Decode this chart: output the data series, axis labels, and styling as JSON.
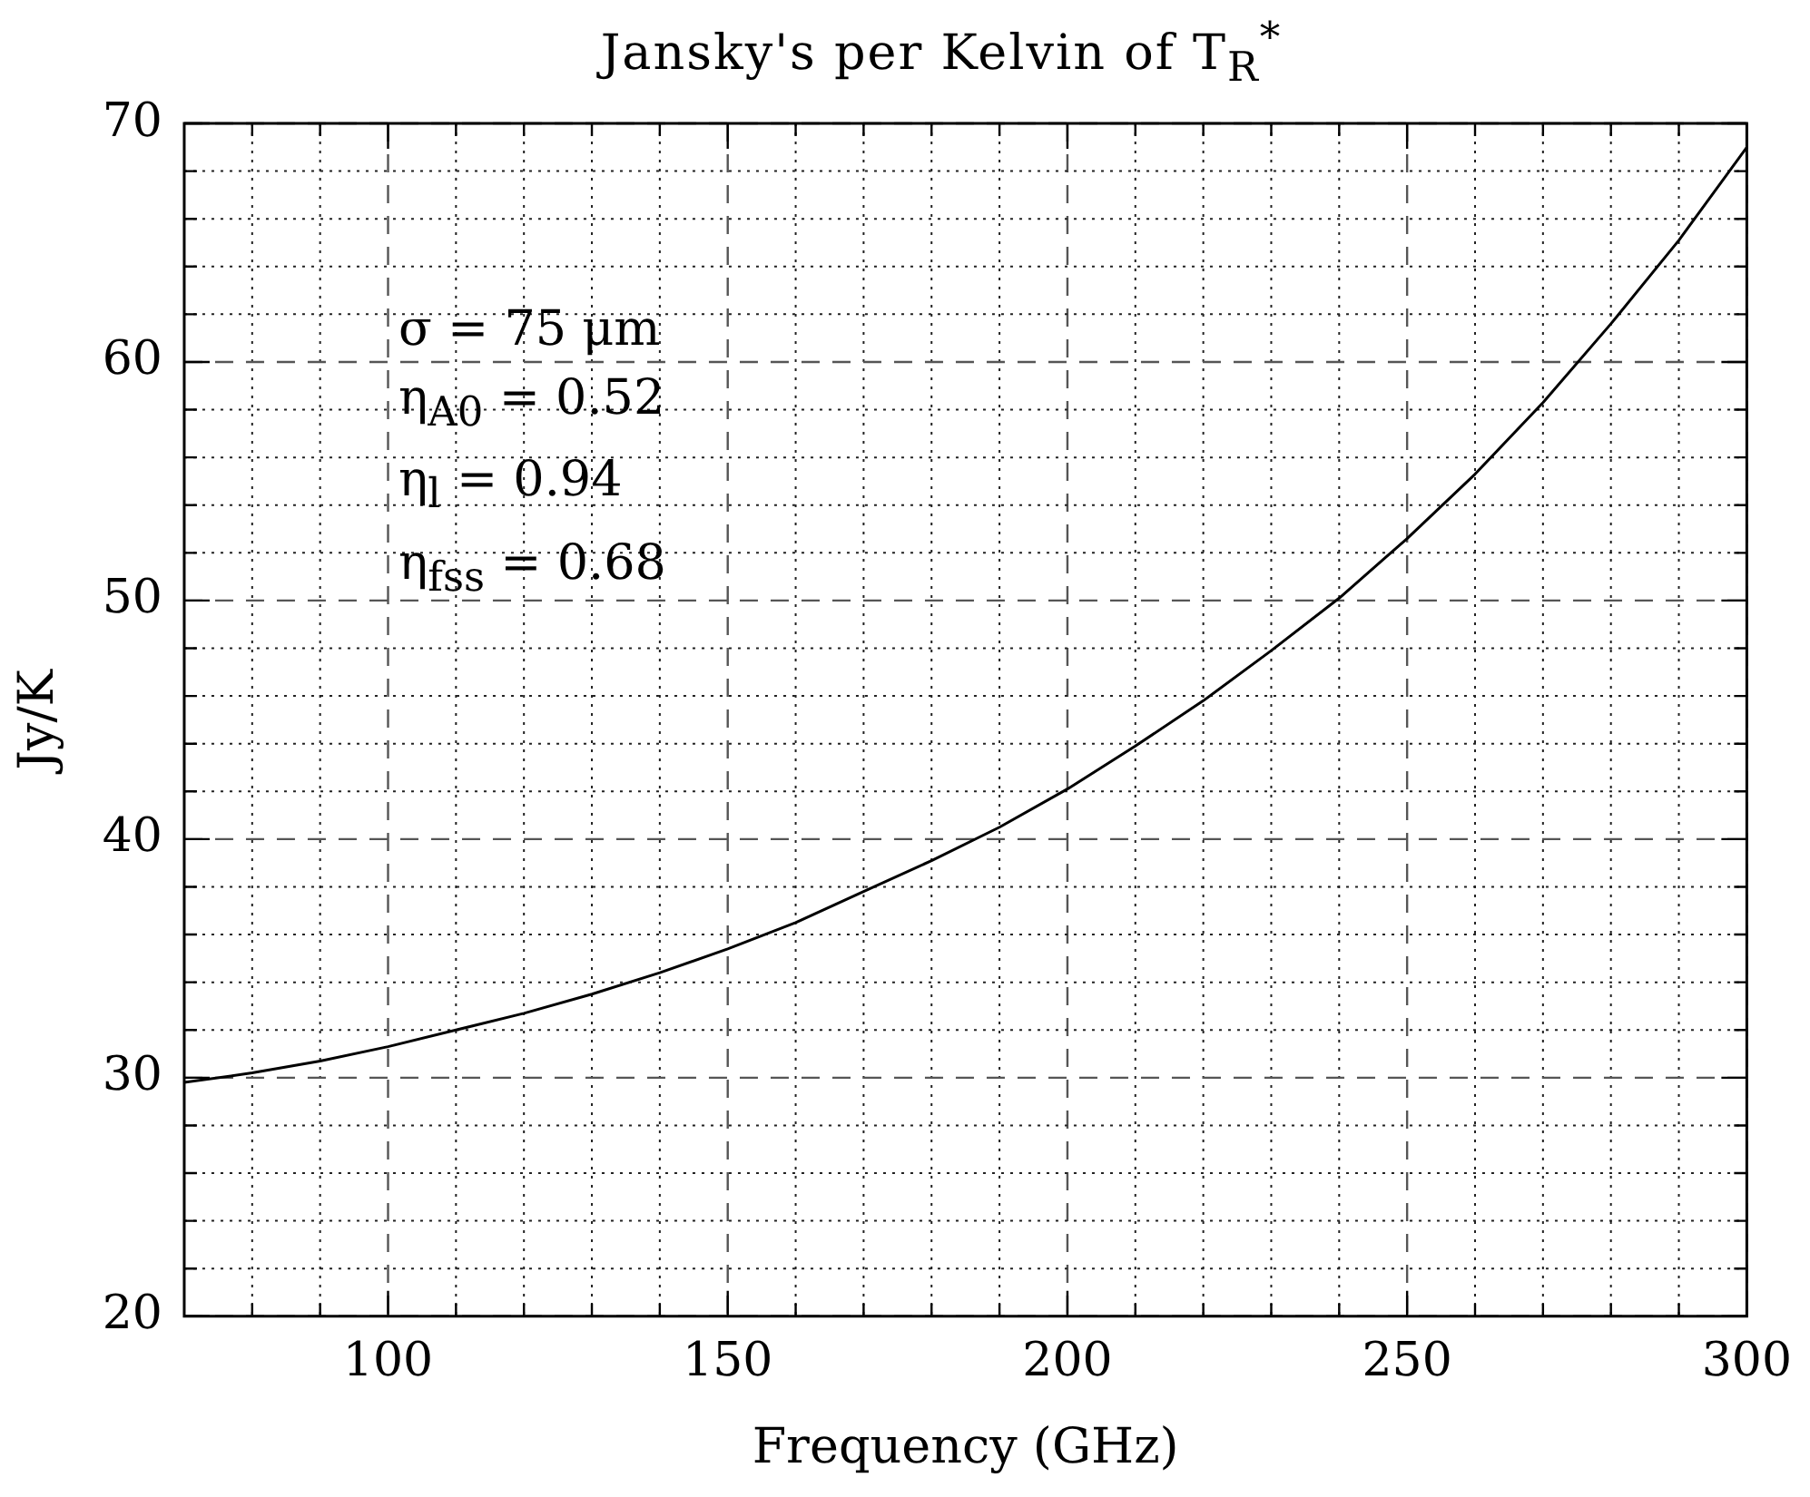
{
  "chart_data": {
    "type": "line",
    "title": "Jansky's per Kelvin of T$_{R}$$^{*}$",
    "xlabel": "Frequency (GHz)",
    "ylabel": "Jy/K",
    "annotations": [
      "σ = 75 μm",
      "η$_{A0}$ = 0.52",
      "η$_{l}$ = 0.94",
      "η$_{fss}$ = 0.68"
    ],
    "x": [
      70,
      80,
      90,
      100,
      110,
      120,
      130,
      140,
      150,
      160,
      170,
      180,
      190,
      200,
      210,
      220,
      230,
      240,
      250,
      260,
      270,
      280,
      290,
      300
    ],
    "series": [
      {
        "color": "#000000",
        "values": [
          29.8,
          30.2,
          30.7,
          31.3,
          32.0,
          32.7,
          33.5,
          34.4,
          35.4,
          36.5,
          37.8,
          39.1,
          40.5,
          42.1,
          43.9,
          45.8,
          47.9,
          50.1,
          52.6,
          55.3,
          58.3,
          61.6,
          65.1,
          69.0
        ]
      }
    ],
    "xlim": [
      70,
      300
    ],
    "ylim": [
      20,
      70
    ],
    "xticks": [
      {
        "value": 80,
        "label": null
      },
      {
        "value": 90,
        "label": null
      },
      100,
      {
        "value": 110,
        "label": null
      },
      {
        "value": 120,
        "label": null
      },
      {
        "value": 130,
        "label": null
      },
      {
        "value": 140,
        "label": null
      },
      150,
      {
        "value": 160,
        "label": null
      },
      {
        "value": 170,
        "label": null
      },
      {
        "value": 180,
        "label": null
      },
      {
        "value": 190,
        "label": null
      },
      200,
      {
        "value": 210,
        "label": null
      },
      {
        "value": 220,
        "label": null
      },
      {
        "value": 230,
        "label": null
      },
      {
        "value": 240,
        "label": null
      },
      250,
      {
        "value": 260,
        "label": null
      },
      {
        "value": 270,
        "label": null
      },
      {
        "value": 280,
        "label": null
      },
      {
        "value": 290,
        "label": null
      },
      300
    ],
    "yticks": [
      20,
      {
        "value": 22,
        "label": null
      },
      {
        "value": 24,
        "label": null
      },
      {
        "value": 26,
        "label": null
      },
      {
        "value": 28,
        "label": null
      },
      30,
      {
        "value": 32,
        "label": null
      },
      {
        "value": 34,
        "label": null
      },
      {
        "value": 36,
        "label": null
      },
      {
        "value": 38,
        "label": null
      },
      40,
      {
        "value": 42,
        "label": null
      },
      {
        "value": 44,
        "label": null
      },
      {
        "value": 46,
        "label": null
      },
      {
        "value": 48,
        "label": null
      },
      50,
      {
        "value": 52,
        "label": null
      },
      {
        "value": 54,
        "label": null
      },
      {
        "value": 56,
        "label": null
      },
      {
        "value": 58,
        "label": null
      },
      60,
      {
        "value": 62,
        "label": null
      },
      {
        "value": 64,
        "label": null
      },
      {
        "value": 66,
        "label": null
      },
      {
        "value": 68,
        "label": null
      },
      70
    ],
    "grid": true,
    "legend": false,
    "marker": "none",
    "line_style": "solid"
  }
}
